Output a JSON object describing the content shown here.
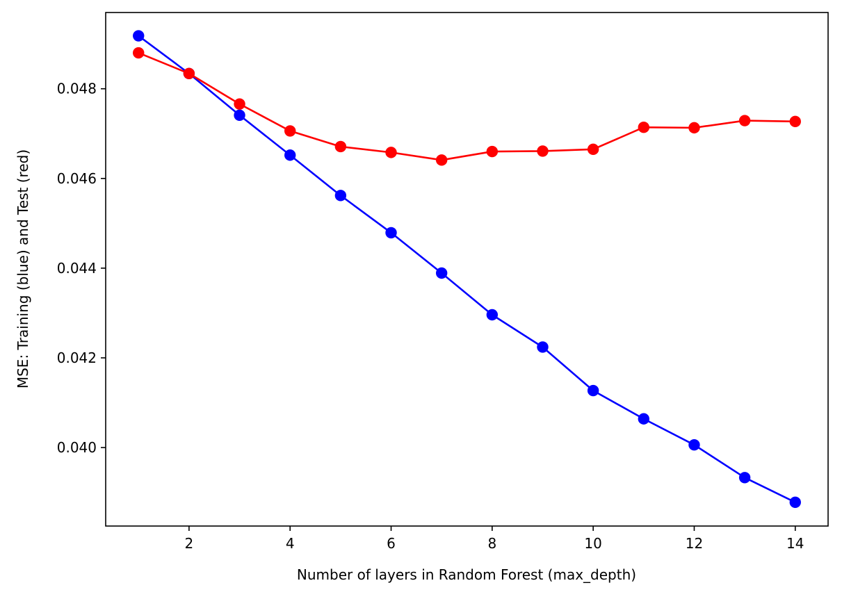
{
  "chart_data": {
    "type": "line",
    "title": "",
    "xlabel": "Number of layers in Random Forest (max_depth)",
    "ylabel": "MSE: Training (blue) and Test (red)",
    "x": [
      1,
      2,
      3,
      4,
      5,
      6,
      7,
      8,
      9,
      10,
      11,
      12,
      13,
      14
    ],
    "xlim": [
      0.35,
      14.65
    ],
    "ylim": [
      0.03825,
      0.0497
    ],
    "xticks": [
      2,
      4,
      6,
      8,
      10,
      12,
      14
    ],
    "xtick_labels": [
      "2",
      "4",
      "6",
      "8",
      "10",
      "12",
      "14"
    ],
    "yticks": [
      0.04,
      0.042,
      0.044,
      0.046,
      0.048
    ],
    "ytick_labels": [
      "0.040",
      "0.042",
      "0.044",
      "0.046",
      "0.048"
    ],
    "grid": false,
    "series": [
      {
        "color": "#0000ff",
        "values": [
          0.04918,
          0.04834,
          0.04741,
          0.04652,
          0.04562,
          0.04479,
          0.04389,
          0.04296,
          0.04224,
          0.04127,
          0.04064,
          0.04006,
          0.03933,
          0.03878
        ]
      },
      {
        "color": "#ff0000",
        "values": [
          0.0488,
          0.04834,
          0.04766,
          0.04706,
          0.04671,
          0.04658,
          0.04641,
          0.0466,
          0.04661,
          0.04665,
          0.04714,
          0.04713,
          0.04729,
          0.04727
        ]
      }
    ]
  }
}
